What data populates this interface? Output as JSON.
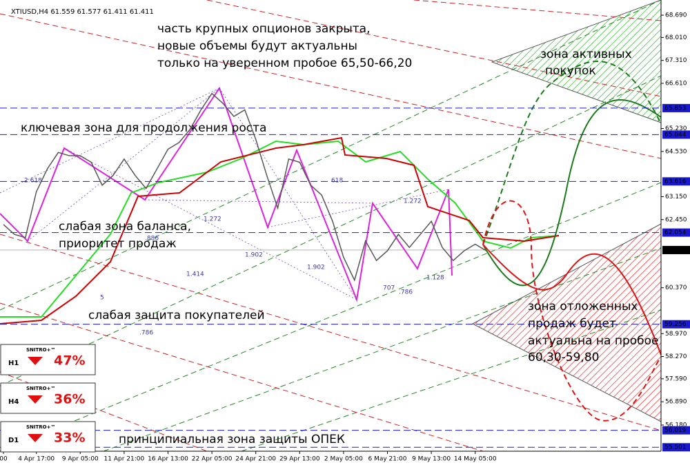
{
  "chart_data": {
    "type": "line",
    "header": "XTIUSD,H4  61.559 61.577 61.411 61.411",
    "categories": [
      "00",
      null,
      null,
      "4 Apr 17:00",
      null,
      null,
      null,
      "9 Apr 05:00",
      null,
      null,
      null,
      "11 Apr 21:00",
      null,
      null,
      null,
      "16 Apr 13:00",
      null,
      null,
      null,
      "22 Apr 05:00",
      null,
      null,
      null,
      "24 Apr 21:00",
      null,
      null,
      null,
      "29 Apr 13:00",
      null,
      null,
      null,
      "2 May 05:00",
      null,
      null,
      null,
      "6 May 21:00",
      null,
      null,
      null,
      "9 May 13:00",
      null,
      null,
      null,
      "14 May 05:00",
      null
    ],
    "series": [
      {
        "name": "XTIUSD,H4",
        "color": "#555555",
        "values": [
          62.3,
          62.0,
          61.9,
          63.3,
          64.0,
          64.5,
          64.4,
          64.4,
          64.2,
          63.5,
          63.8,
          64.3,
          63.8,
          63.4,
          64.0,
          64.6,
          64.8,
          65.2,
          65.8,
          66.3,
          66.0,
          65.6,
          65.8,
          64.9,
          63.8,
          62.8,
          64.3,
          64.2,
          63.5,
          63.2,
          62.4,
          61.3,
          60.6,
          61.8,
          61.2,
          61.5,
          62.0,
          61.6,
          62.0,
          62.4,
          61.6,
          61.2,
          61.5,
          61.7,
          61.5
        ]
      }
    ],
    "ylim": [
      55.38,
      69.153
    ],
    "yticks": [
      {
        "value": 68.69,
        "label": "68.690"
      },
      {
        "value": 68.01,
        "label": "68.010"
      },
      {
        "value": 67.31,
        "label": "67.310"
      },
      {
        "value": 66.61,
        "label": "66.610"
      },
      {
        "value": 65.23,
        "label": "65.230"
      },
      {
        "value": 64.53,
        "label": "64.530"
      },
      {
        "value": 63.15,
        "label": "63.150"
      },
      {
        "value": 62.45,
        "label": "62.450"
      },
      {
        "value": 60.37,
        "label": "60.370"
      },
      {
        "value": 58.97,
        "label": "58.970"
      },
      {
        "value": 58.27,
        "label": "58.270"
      },
      {
        "value": 57.59,
        "label": "57.590"
      },
      {
        "value": 56.89,
        "label": "56.890"
      },
      {
        "value": 56.18,
        "label": "56.180"
      }
    ],
    "levels": [
      65.853,
      65.044,
      63.616,
      62.054,
      59.256,
      56.019,
      55.501
    ],
    "current_price": 61.521,
    "annotations": [
      "часть крупных опционов закрыта,",
      "новые объемы будут актуальны",
      "только на уверенном пробое 65,50-66,20",
      "ключевая зона для продолжения роста",
      "слабая зона баланса,",
      "приоритет продаж",
      "слабая защита покупателей",
      "зона активных",
      "покупок",
      "зона отложенных",
      "продаж будет",
      "актуальна на пробое",
      "60,30-59,80",
      "принципиальная зона защиты ОПЕК"
    ],
    "fib_labels": [
      "2.618",
      "1.272",
      "1.414",
      "1.902",
      "1.902",
      ".886",
      ".786",
      "618",
      "1.272",
      "707",
      ".786",
      "1.128",
      "5"
    ],
    "signals": {
      "brand": "SNITRO+™",
      "timeframes": [
        "H1",
        "H4",
        "D1"
      ],
      "values": [
        47,
        36,
        33
      ],
      "value_labels": [
        "47%",
        "36%",
        "33%"
      ],
      "color": "#e01010"
    }
  }
}
